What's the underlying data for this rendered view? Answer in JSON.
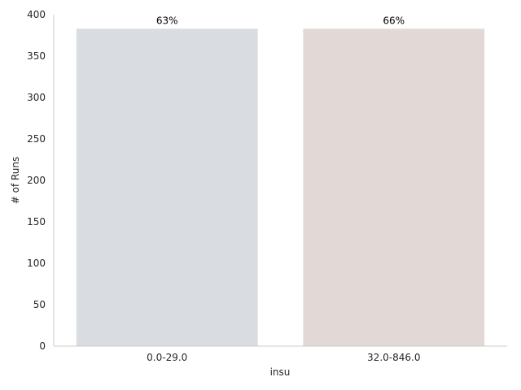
{
  "chart_data": {
    "type": "bar",
    "categories": [
      "0.0-29.0",
      "32.0-846.0"
    ],
    "values": [
      383,
      383
    ],
    "data_labels": [
      "63%",
      "66%"
    ],
    "bar_colors": [
      "#d9dce0",
      "#e2d9d6"
    ],
    "xlabel": "insu",
    "ylabel": "# of Runs",
    "ylim": [
      0,
      400
    ],
    "yticks": [
      0,
      50,
      100,
      150,
      200,
      250,
      300,
      350,
      400
    ],
    "grid": false,
    "legend": "none"
  }
}
